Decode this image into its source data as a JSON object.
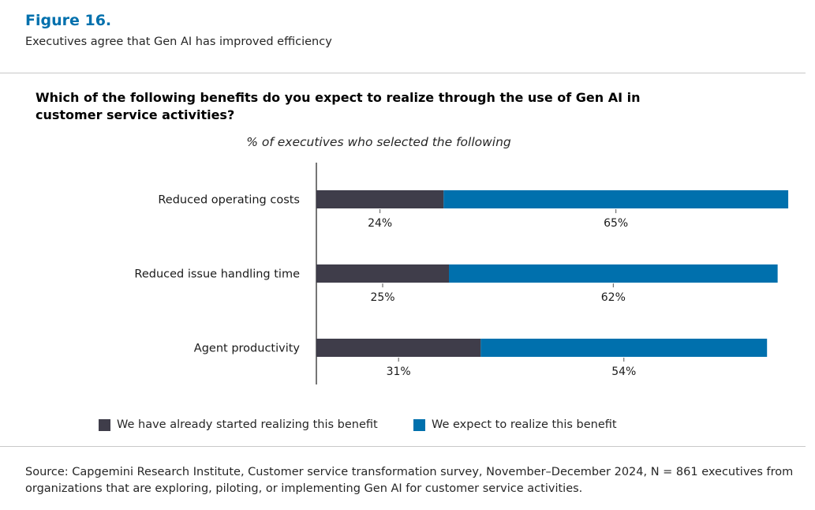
{
  "figure": {
    "label": "Figure 16.",
    "subtitle": "Executives agree that Gen AI has improved efficiency"
  },
  "question": "Which of the following benefits do you expect to realize through the use of Gen AI in customer service activities?",
  "source": "Source: Capgemini Research Institute, Customer service transformation survey, November–December 2024, N = 861 executives from organizations that are exploring, piloting, or implementing Gen AI for customer service activities.",
  "chart_data": {
    "type": "bar",
    "orientation": "horizontal",
    "stacked": true,
    "subtitle": "% of executives who selected the following",
    "categories": [
      "Reduced operating costs",
      "Reduced issue handling time",
      "Agent productivity"
    ],
    "series": [
      {
        "name": "We have already started realizing this benefit",
        "values": [
          24,
          25,
          31
        ],
        "labels": [
          "24%",
          "25%",
          "31%"
        ],
        "color": "#3f3d4a"
      },
      {
        "name": "We expect to realize this benefit",
        "values": [
          65,
          62,
          54
        ],
        "labels": [
          "65%",
          "62%",
          "54%"
        ],
        "color": "#0070ad"
      }
    ],
    "unit": "%",
    "grid": false,
    "legend_position": "bottom"
  }
}
